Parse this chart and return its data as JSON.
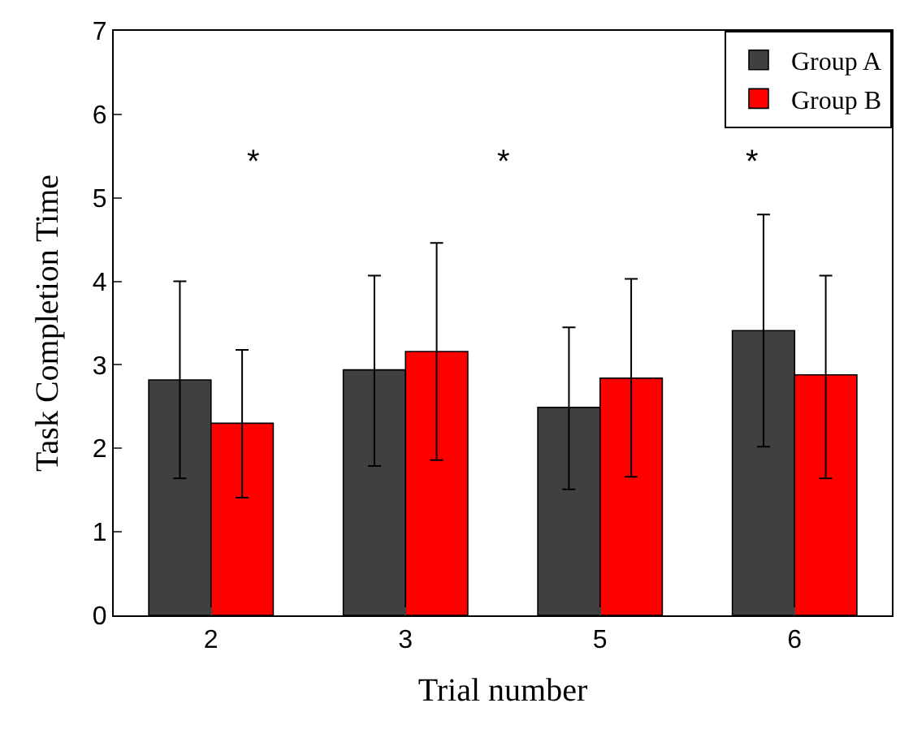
{
  "chart_data": {
    "type": "bar",
    "xlabel": "Trial number",
    "ylabel": "Task Completion Time",
    "categories": [
      "2",
      "3",
      "5",
      "6"
    ],
    "series": [
      {
        "name": "Group A",
        "color": "#404040",
        "values": [
          2.82,
          2.94,
          2.49,
          3.41
        ],
        "errors": [
          [
            1.64,
            4.0
          ],
          [
            1.79,
            4.07
          ],
          [
            1.51,
            3.45
          ],
          [
            2.02,
            4.8
          ]
        ]
      },
      {
        "name": "Group B",
        "color": "#ff0000",
        "values": [
          2.3,
          3.16,
          2.84,
          2.88
        ],
        "errors": [
          [
            1.41,
            3.18
          ],
          [
            1.86,
            4.46
          ],
          [
            1.66,
            4.03
          ],
          [
            1.64,
            4.07
          ]
        ]
      }
    ],
    "ylim": [
      0,
      7
    ],
    "yticks": [
      0,
      1,
      2,
      3,
      4,
      5,
      6,
      7
    ],
    "legend": "top right",
    "annotations": [
      "*",
      "*",
      "*"
    ]
  }
}
